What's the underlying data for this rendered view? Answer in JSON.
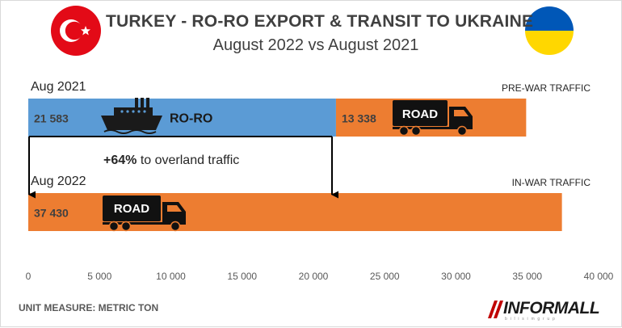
{
  "header": {
    "title": "TURKEY -  RO-RO EXPORT & TRANSIT TO UKRAINE",
    "subtitle": "August 2022  vs  August 2021"
  },
  "flags": {
    "left": "turkey-flag-icon",
    "right": "ukraine-flag-icon",
    "turkey_red": "#e30a17",
    "ukraine_blue": "#0057b7",
    "ukraine_yellow": "#ffd700"
  },
  "rows": {
    "aug2021_label": "Aug 2021",
    "aug2022_label": "Aug 2022",
    "prewar_label": "PRE-WAR TRAFFIC",
    "inwar_label": "IN-WAR TRAFFIC"
  },
  "annotation": {
    "increase_value": "+64%",
    "increase_text": " to overland traffic"
  },
  "footer": {
    "unit_note": "UNIT MEASURE: METRIC TON",
    "logo_text": "INFORMALL",
    "logo_sub": "b i l i s i m   g r u p"
  },
  "icons": {
    "ship": "ship-icon",
    "truck": "truck-icon"
  },
  "chart_data": {
    "type": "bar",
    "orientation": "horizontal",
    "stacked": true,
    "categories": [
      "Aug 2021",
      "Aug 2022"
    ],
    "series": [
      {
        "name": "RO-RO",
        "values": [
          21583,
          0
        ],
        "labels": [
          "21 583",
          ""
        ],
        "color": "#5b9bd5"
      },
      {
        "name": "ROAD",
        "values": [
          13338,
          37430
        ],
        "labels": [
          "13 338",
          "37 430"
        ],
        "color": "#ed7d31"
      }
    ],
    "xlim": [
      0,
      40000
    ],
    "x_ticks": [
      0,
      5000,
      10000,
      15000,
      20000,
      25000,
      30000,
      35000,
      40000
    ],
    "x_tick_labels": [
      "0",
      "5 000",
      "10 000",
      "15 000",
      "20 000",
      "25 000",
      "30 000",
      "35 000",
      "40 000"
    ],
    "grid": false,
    "legend": "none"
  }
}
